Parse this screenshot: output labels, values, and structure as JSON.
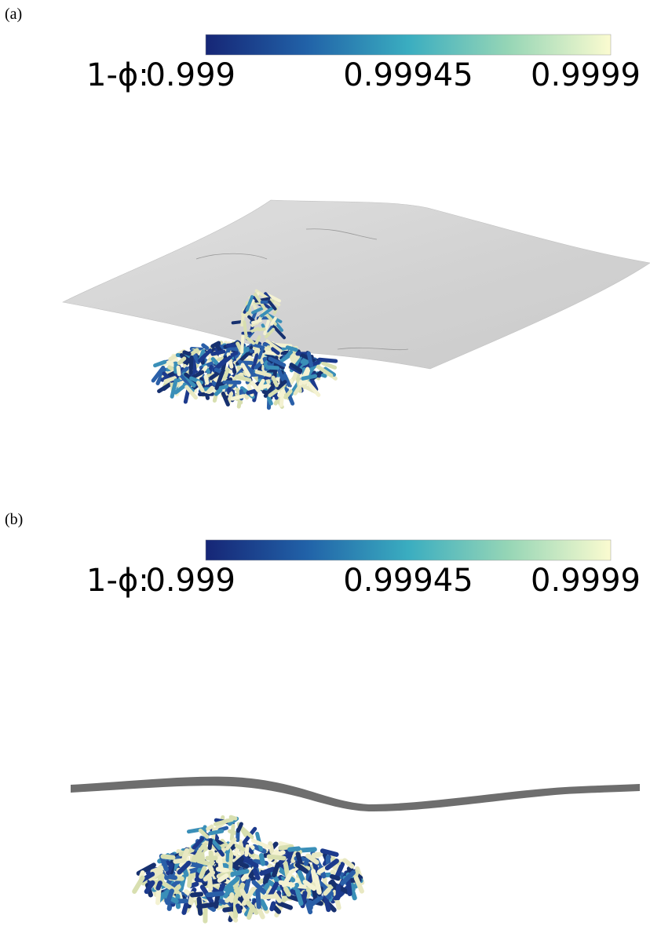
{
  "panels": [
    {
      "label": "(a)",
      "colorbar": {
        "title": "1-ϕ:",
        "ticks": [
          "0.999",
          "0.99945",
          "0.9999"
        ]
      }
    },
    {
      "label": "(b)",
      "colorbar": {
        "title": "1-ϕ:",
        "ticks": [
          "0.999",
          "0.99945",
          "0.9999"
        ]
      }
    }
  ]
}
